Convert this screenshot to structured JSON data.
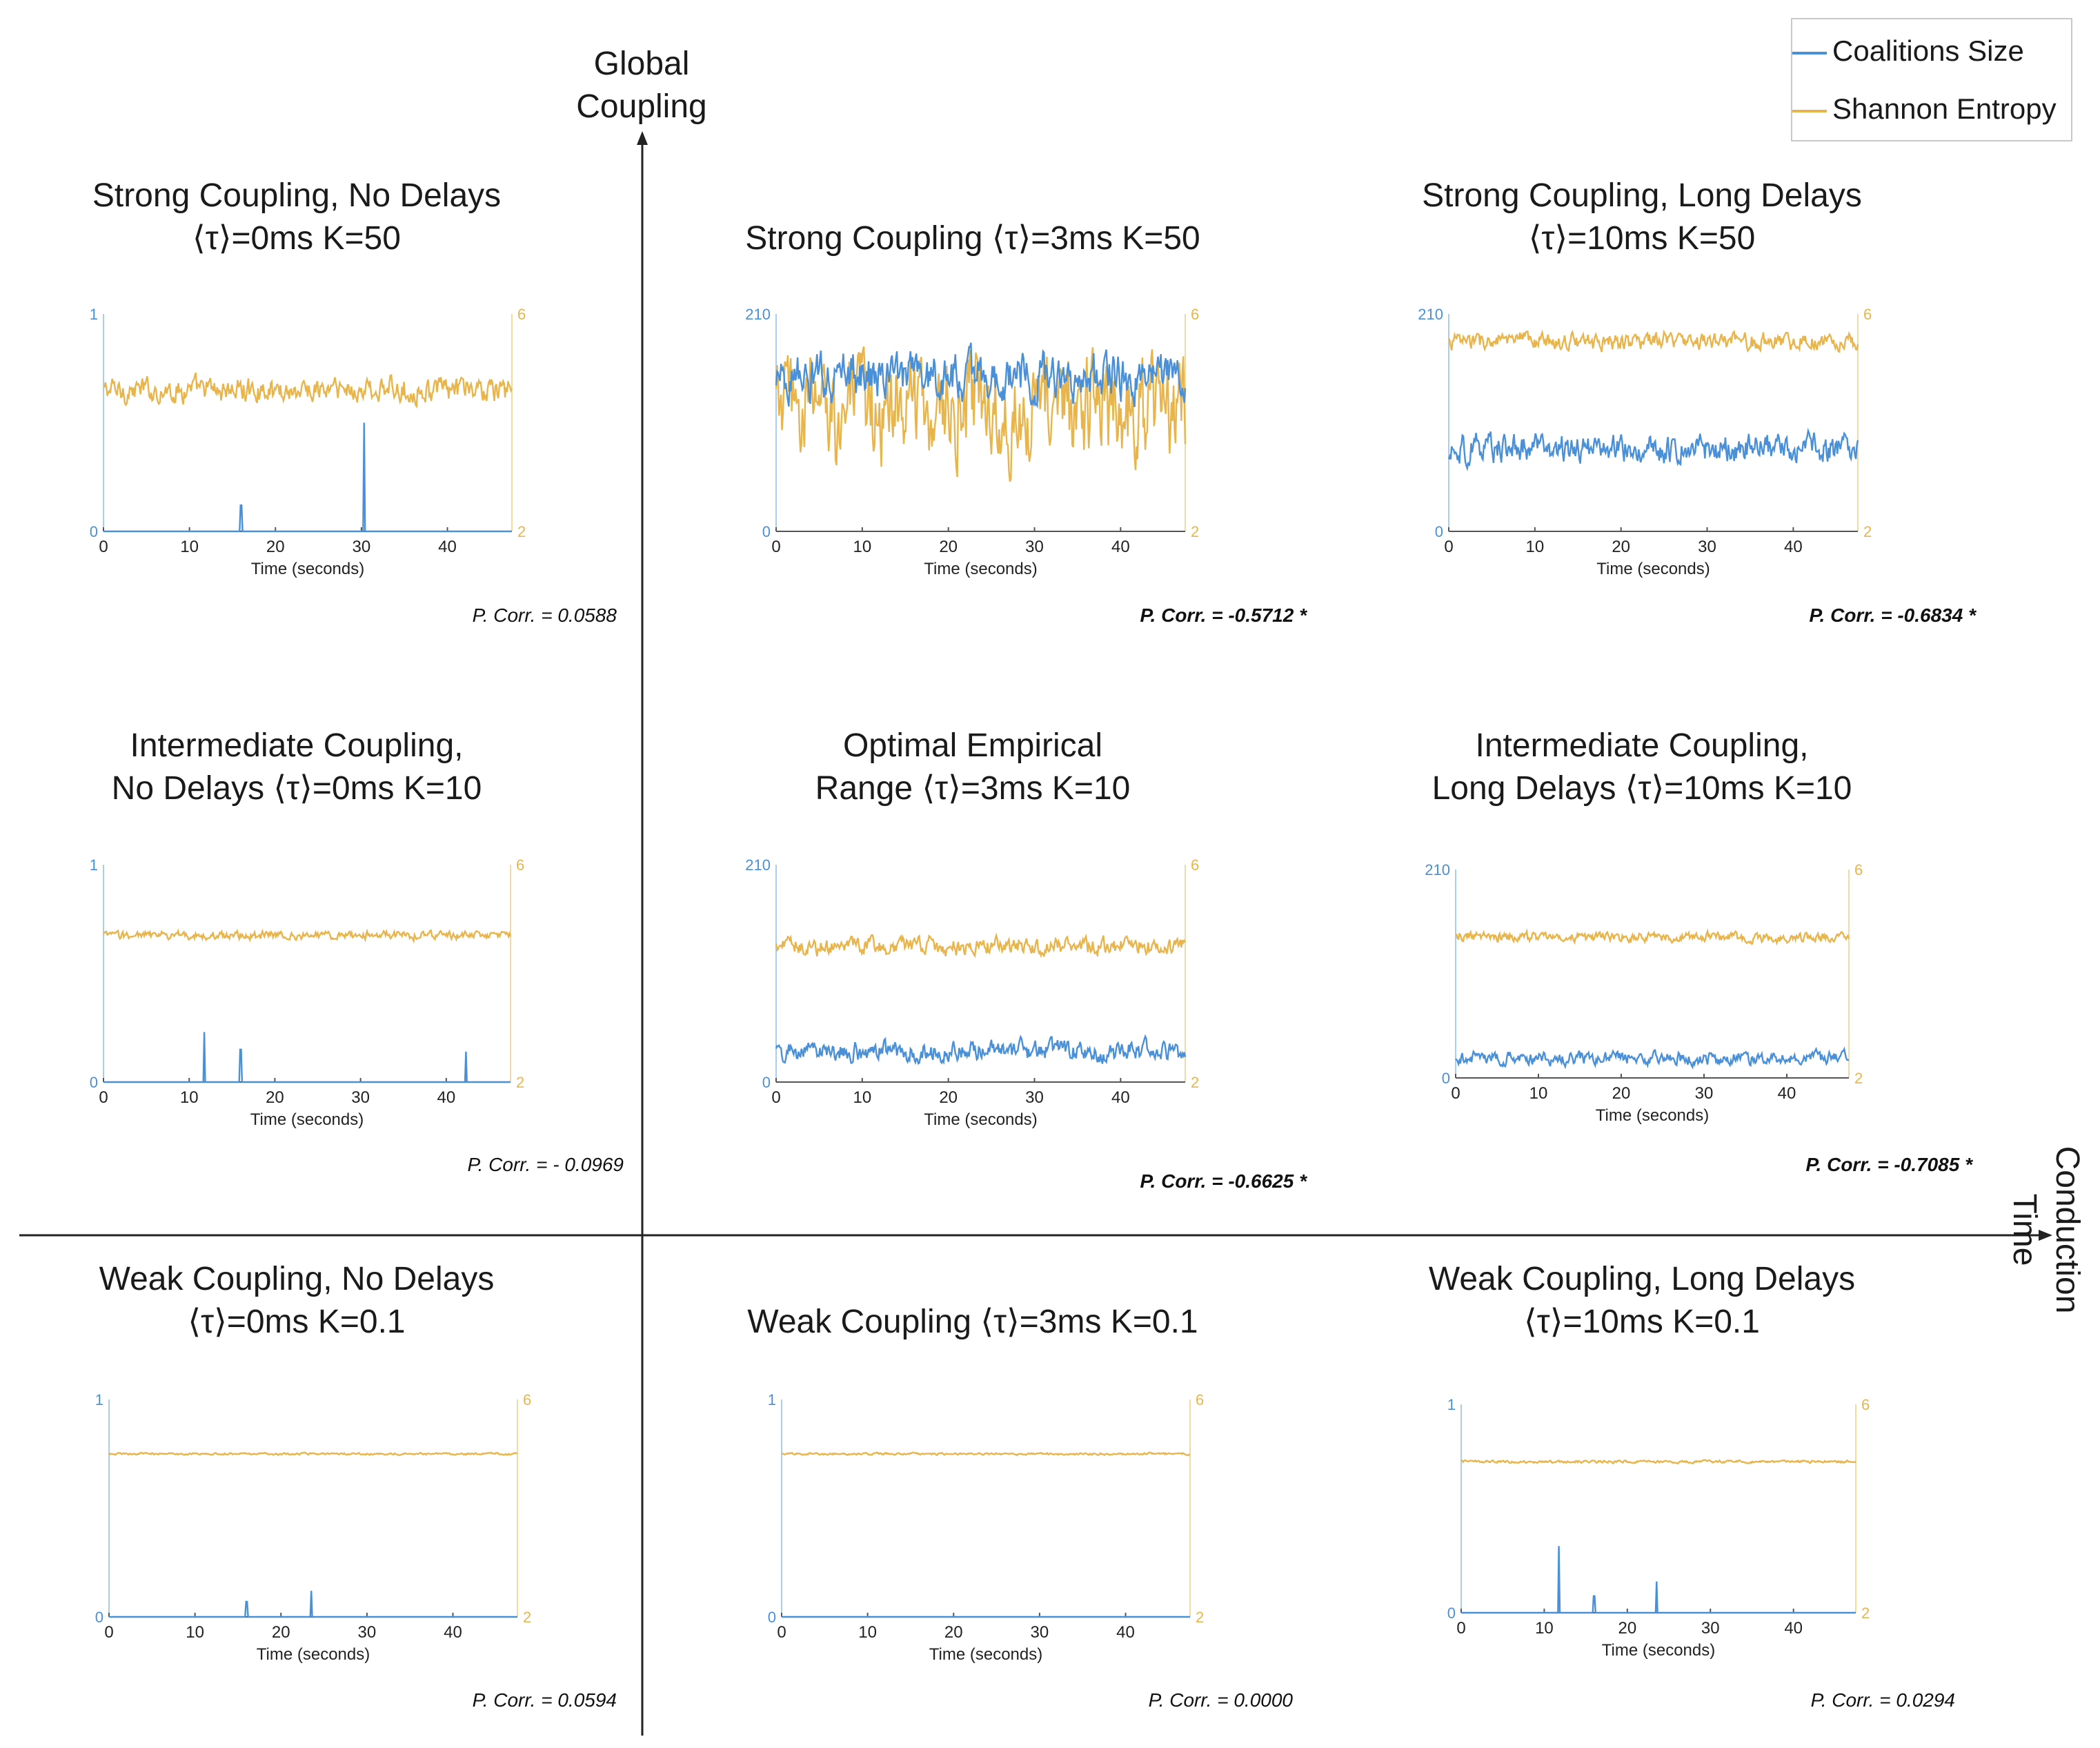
{
  "legend": {
    "items": [
      {
        "label": "Coalitions Size",
        "color": "#4a90d9"
      },
      {
        "label": "Shannon Entropy",
        "color": "#e8b54d"
      }
    ]
  },
  "axes": {
    "y_title_line1": "Global",
    "y_title_line2": "Coupling",
    "x_title_line1": "Conduction",
    "x_title_line2": "Time"
  },
  "colors": {
    "coalitions": "#4a90d9",
    "entropy": "#e8b54d",
    "axis": "#222222"
  },
  "chart_data": [
    {
      "type": "line",
      "title_line1": "Strong Coupling, No Delays",
      "title_line2": "⟨τ⟩=0ms K=50",
      "corr": "P. Corr. = 0.0588",
      "significant": false,
      "left_axis": {
        "min": 0,
        "max": 1,
        "ticks": [
          "0",
          "1"
        ]
      },
      "right_axis": {
        "min": 2,
        "max": 6,
        "ticks": [
          "2",
          "6"
        ]
      },
      "xlabel": "Time (seconds)",
      "xticks": [
        "0",
        "10",
        "20",
        "30",
        "40"
      ],
      "xlim": [
        0,
        47.5
      ],
      "coalitions": {
        "kind": "spikes",
        "baseline": 0.0,
        "spikes": [
          [
            16,
            0.12
          ],
          [
            30.3,
            0.5
          ]
        ]
      },
      "entropy": {
        "mean": 4.6,
        "amplitude": 0.35
      }
    },
    {
      "type": "line",
      "title_line1": "",
      "title_line2": "Strong Coupling ⟨τ⟩=3ms K=50",
      "corr": "P. Corr. = -0.5712 *",
      "significant": true,
      "left_axis": {
        "min": 0,
        "max": 210,
        "ticks": [
          "0",
          "210"
        ]
      },
      "right_axis": {
        "min": 2,
        "max": 6,
        "ticks": [
          "2",
          "6"
        ]
      },
      "xlabel": "Time (seconds)",
      "xticks": [
        "0",
        "10",
        "20",
        "30",
        "40"
      ],
      "xlim": [
        0,
        47.5
      ],
      "coalitions": {
        "kind": "noise",
        "mean": 150,
        "amplitude": 40
      },
      "entropy": {
        "mean": 4.3,
        "amplitude": 1.5
      }
    },
    {
      "type": "line",
      "title_line1": "Strong Coupling, Long Delays",
      "title_line2": "⟨τ⟩=10ms K=50",
      "corr": "P. Corr. = -0.6834 *",
      "significant": true,
      "left_axis": {
        "min": 0,
        "max": 210,
        "ticks": [
          "0",
          "210"
        ]
      },
      "right_axis": {
        "min": 2,
        "max": 6,
        "ticks": [
          "2",
          "6"
        ]
      },
      "xlabel": "Time (seconds)",
      "xticks": [
        "0",
        "10",
        "20",
        "30",
        "40"
      ],
      "xlim": [
        0,
        47.5
      ],
      "coalitions": {
        "kind": "noise",
        "mean": 80,
        "amplitude": 25
      },
      "entropy": {
        "mean": 5.5,
        "amplitude": 0.25
      }
    },
    {
      "type": "line",
      "title_line1": "Intermediate Coupling,",
      "title_line2": "No Delays ⟨τ⟩=0ms K=10",
      "corr": "P. Corr. = - 0.0969",
      "significant": false,
      "left_axis": {
        "min": 0,
        "max": 1,
        "ticks": [
          "0",
          "1"
        ]
      },
      "right_axis": {
        "min": 2,
        "max": 6,
        "ticks": [
          "2",
          "6"
        ]
      },
      "xlabel": "Time (seconds)",
      "xticks": [
        "0",
        "10",
        "20",
        "30",
        "40"
      ],
      "xlim": [
        0,
        47.5
      ],
      "coalitions": {
        "kind": "spikes",
        "baseline": 0.0,
        "spikes": [
          [
            11.8,
            0.23
          ],
          [
            16,
            0.15
          ],
          [
            42.3,
            0.14
          ]
        ]
      },
      "entropy": {
        "mean": 4.7,
        "amplitude": 0.12
      }
    },
    {
      "type": "line",
      "title_line1": "Optimal Empirical",
      "title_line2": "Range ⟨τ⟩=3ms K=10",
      "corr": "P. Corr. = -0.6625 *",
      "significant": true,
      "left_axis": {
        "min": 0,
        "max": 210,
        "ticks": [
          "0",
          "210"
        ]
      },
      "right_axis": {
        "min": 2,
        "max": 6,
        "ticks": [
          "2",
          "6"
        ]
      },
      "xlabel": "Time (seconds)",
      "xticks": [
        "0",
        "10",
        "20",
        "30",
        "40"
      ],
      "xlim": [
        0,
        47.5
      ],
      "coalitions": {
        "kind": "noise",
        "mean": 30,
        "amplitude": 18
      },
      "entropy": {
        "mean": 4.5,
        "amplitude": 0.25
      }
    },
    {
      "type": "line",
      "title_line1": "Intermediate Coupling,",
      "title_line2": "Long Delays ⟨τ⟩=10ms K=10",
      "corr": "P. Corr. = -0.7085 *",
      "significant": true,
      "left_axis": {
        "min": 0,
        "max": 210,
        "ticks": [
          "0",
          "210"
        ]
      },
      "right_axis": {
        "min": 2,
        "max": 6,
        "ticks": [
          "2",
          "6"
        ]
      },
      "xlabel": "Time (seconds)",
      "xticks": [
        "0",
        "10",
        "20",
        "30",
        "40"
      ],
      "xlim": [
        0,
        47.5
      ],
      "coalitions": {
        "kind": "noise",
        "mean": 20,
        "amplitude": 12
      },
      "entropy": {
        "mean": 4.7,
        "amplitude": 0.15
      }
    },
    {
      "type": "line",
      "title_line1": "Weak Coupling, No Delays",
      "title_line2": "⟨τ⟩=0ms K=0.1",
      "corr": "P. Corr. = 0.0594",
      "significant": false,
      "left_axis": {
        "min": 0,
        "max": 1,
        "ticks": [
          "0",
          "1"
        ]
      },
      "right_axis": {
        "min": 2,
        "max": 6,
        "ticks": [
          "2",
          "6"
        ]
      },
      "xlabel": "Time (seconds)",
      "xticks": [
        "0",
        "10",
        "20",
        "30",
        "40"
      ],
      "xlim": [
        0,
        47.5
      ],
      "coalitions": {
        "kind": "spikes",
        "baseline": 0.0,
        "spikes": [
          [
            16,
            0.07
          ],
          [
            23.5,
            0.12
          ]
        ]
      },
      "entropy": {
        "mean": 5.0,
        "amplitude": 0.03
      }
    },
    {
      "type": "line",
      "title_line1": "",
      "title_line2": "Weak Coupling ⟨τ⟩=3ms K=0.1",
      "corr": "P. Corr. = 0.0000",
      "significant": false,
      "left_axis": {
        "min": 0,
        "max": 1,
        "ticks": [
          "0",
          "1"
        ]
      },
      "right_axis": {
        "min": 2,
        "max": 6,
        "ticks": [
          "2",
          "6"
        ]
      },
      "xlabel": "Time (seconds)",
      "xticks": [
        "0",
        "10",
        "20",
        "30",
        "40"
      ],
      "xlim": [
        0,
        47.5
      ],
      "coalitions": {
        "kind": "spikes",
        "baseline": 0.0,
        "spikes": []
      },
      "entropy": {
        "mean": 5.0,
        "amplitude": 0.03
      }
    },
    {
      "type": "line",
      "title_line1": "Weak Coupling, Long Delays",
      "title_line2": "⟨τ⟩=10ms K=0.1",
      "corr": "P. Corr. = 0.0294",
      "significant": false,
      "left_axis": {
        "min": 0,
        "max": 1,
        "ticks": [
          "0",
          "1"
        ]
      },
      "right_axis": {
        "min": 2,
        "max": 6,
        "ticks": [
          "2",
          "6"
        ]
      },
      "xlabel": "Time (seconds)",
      "xticks": [
        "0",
        "10",
        "20",
        "30",
        "40"
      ],
      "xlim": [
        0,
        47.5
      ],
      "coalitions": {
        "kind": "spikes",
        "baseline": 0.0,
        "spikes": [
          [
            11.8,
            0.32
          ],
          [
            16,
            0.08
          ],
          [
            23.5,
            0.15
          ]
        ]
      },
      "entropy": {
        "mean": 4.9,
        "amplitude": 0.04
      }
    }
  ]
}
